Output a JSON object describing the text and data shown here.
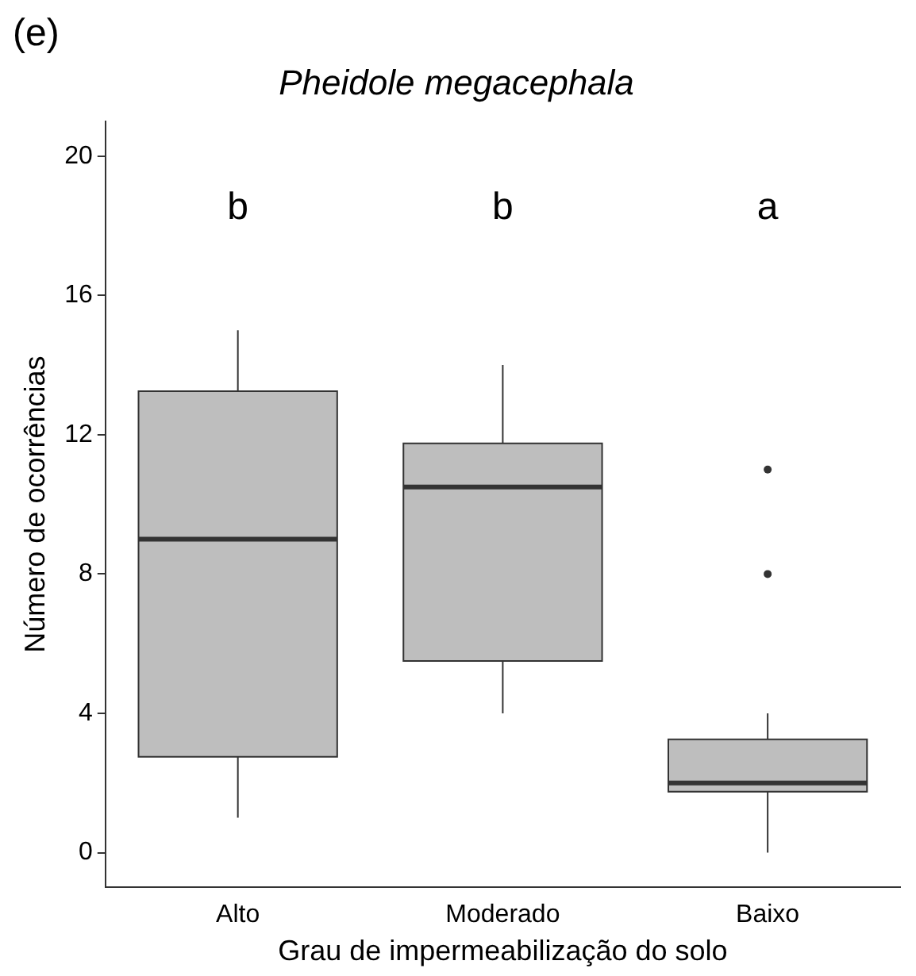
{
  "chart_data": {
    "type": "box",
    "title": "Pheidole megacephala",
    "xlabel": "Grau de impermeabilização do solo",
    "ylabel": "Número de ocorrências",
    "categories": [
      "Alto",
      "Moderado",
      "Baixo"
    ],
    "boxes": [
      {
        "low": 1,
        "q1": 2.75,
        "median": 9,
        "q3": 13.25,
        "high": 15
      },
      {
        "low": 4,
        "q1": 5.5,
        "median": 10.5,
        "q3": 11.75,
        "high": 14
      },
      {
        "low": 0,
        "q1": 1.75,
        "median": 2,
        "q3": 3.25,
        "high": 4,
        "outliers": [
          8,
          11
        ]
      }
    ],
    "color": "#bebebe",
    "ylim": [
      -1,
      21
    ],
    "yticks": [
      0,
      4,
      8,
      12,
      16,
      20
    ],
    "grid": false,
    "legend": false,
    "annotations": [
      "(e)",
      "b",
      "b",
      "a"
    ]
  }
}
